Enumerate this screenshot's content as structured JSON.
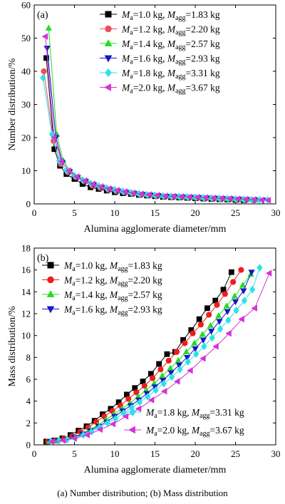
{
  "caption": "(a)  Number  distribution;  (b)  Mass  distribution",
  "chart_data": [
    {
      "type": "line",
      "panel": "(a)",
      "xlabel": "Alumina agglomerate diameter/mm",
      "ylabel": "Number distribution/%",
      "xlim": [
        0,
        30
      ],
      "ylim": [
        0,
        60
      ],
      "xticks": [
        "0",
        "5",
        "10",
        "15",
        "20",
        "25",
        "30"
      ],
      "yticks": [
        "0",
        "10",
        "20",
        "30",
        "40",
        "50",
        "60"
      ],
      "legend_position": "top-right",
      "series": [
        {
          "legend": [
            "M",
            "a",
            "=1.0 kg,  ",
            "M",
            "agg",
            "=1.83 kg"
          ],
          "color": "#000000",
          "marker": "square",
          "x": [
            1.5,
            2.5,
            3.2,
            4,
            5,
            6,
            7,
            8,
            9,
            10,
            11,
            12,
            13,
            14,
            15,
            16,
            17,
            18,
            19,
            20,
            21,
            22,
            23,
            24,
            25,
            26
          ],
          "y": [
            44,
            16.5,
            11.5,
            9,
            7.5,
            6,
            5,
            4.5,
            4,
            3.5,
            3.2,
            3,
            2.7,
            2.5,
            2.3,
            2.1,
            2,
            1.9,
            1.8,
            1.7,
            1.6,
            1.5,
            1.4,
            1.3,
            1.2,
            1.1
          ]
        },
        {
          "legend": [
            "M",
            "a",
            "=1.2 kg,  ",
            "M",
            "agg",
            "=2.20 kg"
          ],
          "color": "#e8505b",
          "marker": "circle",
          "x": [
            1.2,
            2.4,
            3.3,
            4.2,
            5.2,
            6.2,
            7.2,
            8.2,
            9.2,
            10.2,
            11.2,
            12.2,
            13.2,
            14.2,
            15.2,
            16.2,
            17.2,
            18.2,
            19.2,
            20.2,
            21.2,
            22.2,
            23.2,
            24.2,
            25.2,
            26.2,
            27.2
          ],
          "y": [
            40,
            19,
            12,
            9.5,
            8,
            6.8,
            5.5,
            4.8,
            4.2,
            3.8,
            3.4,
            3.1,
            2.8,
            2.6,
            2.4,
            2.2,
            2.1,
            2,
            1.9,
            1.8,
            1.7,
            1.6,
            1.5,
            1.4,
            1.3,
            1.2,
            1.1
          ]
        },
        {
          "legend": [
            "M",
            "a",
            "=1.4 kg,  ",
            "M",
            "agg",
            "=2.57 kg"
          ],
          "color": "#22dd22",
          "marker": "triangle-up",
          "x": [
            1.8,
            2.8,
            3.6,
            4.5,
            5.5,
            6.5,
            7.5,
            8.5,
            9.5,
            10.5,
            11.5,
            12.5,
            13.5,
            14.5,
            15.5,
            16.5,
            17.5,
            18.5,
            19.5,
            20.5,
            21.5,
            22.5,
            23.5,
            24.5,
            25.5,
            26.5,
            27.5
          ],
          "y": [
            53,
            21,
            13,
            10,
            8.2,
            7,
            6,
            5.2,
            4.5,
            4,
            3.6,
            3.2,
            2.9,
            2.7,
            2.5,
            2.3,
            2.2,
            2.1,
            2,
            1.9,
            1.8,
            1.7,
            1.6,
            1.5,
            1.4,
            1.3,
            1.2
          ]
        },
        {
          "legend": [
            "M",
            "a",
            "=1.6 kg,  ",
            "M",
            "agg",
            "=2.93 kg"
          ],
          "color": "#1515c8",
          "marker": "triangle-down",
          "x": [
            1.6,
            2.7,
            3.5,
            4.4,
            5.4,
            6.4,
            7.4,
            8.4,
            9.4,
            10.4,
            11.4,
            12.4,
            13.4,
            14.4,
            15.4,
            16.4,
            17.4,
            18.4,
            19.4,
            20.4,
            21.4,
            22.4,
            23.4,
            24.4,
            25.4,
            26.4,
            27.4,
            28.4
          ],
          "y": [
            47,
            20,
            12.5,
            9.8,
            8,
            6.8,
            5.8,
            5,
            4.4,
            3.9,
            3.5,
            3.2,
            2.9,
            2.7,
            2.5,
            2.3,
            2.2,
            2.1,
            2,
            1.9,
            1.8,
            1.7,
            1.6,
            1.5,
            1.4,
            1.3,
            1.2,
            1.1
          ]
        },
        {
          "legend": [
            "M",
            "a",
            "=1.8 kg,  ",
            "M",
            "agg",
            "=3.31 kg"
          ],
          "color": "#2ee0e8",
          "marker": "diamond",
          "x": [
            1.1,
            2.2,
            3.1,
            4,
            5,
            6,
            7,
            8,
            9,
            10,
            11,
            12,
            13,
            14,
            15,
            16,
            17,
            18,
            19,
            20,
            21,
            22,
            23,
            24,
            25,
            26,
            27,
            28,
            29
          ],
          "y": [
            38,
            21,
            13,
            10,
            8.5,
            7.2,
            6.2,
            5.4,
            4.8,
            4.3,
            3.8,
            3.4,
            3.1,
            2.8,
            2.6,
            2.4,
            2.3,
            2.2,
            2.1,
            2,
            1.9,
            1.8,
            1.7,
            1.6,
            1.5,
            1.4,
            1.3,
            1.2,
            1.2
          ]
        },
        {
          "legend": [
            "M",
            "a",
            "=2.0 kg,  ",
            "M",
            "agg",
            "=3.67 kg"
          ],
          "color": "#d632d6",
          "marker": "triangle-left",
          "x": [
            1.4,
            2.5,
            3.4,
            4.3,
            5.3,
            6.3,
            7.3,
            8.3,
            9.3,
            10.3,
            11.3,
            12.3,
            13.3,
            14.3,
            15.3,
            16.3,
            17.3,
            18.3,
            19.3,
            20.3,
            21.3,
            22.3,
            23.3,
            24.3,
            25.3,
            26.3,
            27.3,
            28.3,
            29.1
          ],
          "y": [
            50.5,
            20,
            12.8,
            10,
            8.2,
            7,
            6,
            5.2,
            4.6,
            4.1,
            3.7,
            3.3,
            3,
            2.8,
            2.6,
            2.4,
            2.3,
            2.2,
            2.1,
            2,
            1.9,
            1.8,
            1.7,
            1.6,
            1.5,
            1.4,
            1.3,
            1.2,
            1.1
          ]
        }
      ]
    },
    {
      "type": "line",
      "panel": "(b)",
      "xlabel": "Alumina agglomerate diameter/mm",
      "ylabel": "Mass distribution/%",
      "xlim": [
        0,
        30
      ],
      "ylim": [
        0,
        18
      ],
      "xticks": [
        "0",
        "5",
        "10",
        "15",
        "20",
        "25",
        "30"
      ],
      "yticks": [
        "0",
        "2",
        "4",
        "6",
        "8",
        "10",
        "12",
        "14",
        "16",
        "18"
      ],
      "legend_position": "top-left and bottom-right",
      "series": [
        {
          "legend": [
            "M",
            "a",
            "=1.0 kg,  ",
            "M",
            "agg",
            "=1.83 kg"
          ],
          "color": "#000000",
          "marker": "square",
          "x": [
            1.5,
            2.5,
            3.5,
            4.5,
            5.5,
            6.5,
            7.5,
            8.5,
            9.5,
            10.5,
            11.5,
            12.5,
            13.5,
            14.5,
            15.5,
            16.5,
            17.5,
            18.5,
            19.5,
            20.5,
            21.5,
            22.5,
            23.5,
            24.5
          ],
          "y": [
            0.3,
            0.4,
            0.6,
            0.9,
            1.3,
            1.7,
            2.2,
            2.8,
            3.3,
            3.9,
            4.6,
            5.2,
            5.8,
            6.5,
            7.4,
            8.3,
            8.5,
            9.6,
            10.5,
            11.5,
            12.5,
            13.2,
            14.2,
            15.8
          ]
        },
        {
          "legend": [
            "M",
            "a",
            "=1.2 kg,  ",
            "M",
            "agg",
            "=2.20 kg"
          ],
          "color": "#ee1c1c",
          "marker": "circle",
          "x": [
            1.7,
            2.7,
            3.7,
            4.7,
            5.7,
            6.7,
            7.7,
            8.7,
            9.7,
            10.7,
            11.7,
            12.7,
            13.7,
            14.7,
            15.7,
            16.7,
            17.7,
            18.7,
            19.7,
            20.7,
            21.7,
            22.7,
            23.7,
            24.7,
            25.7
          ],
          "y": [
            0.3,
            0.4,
            0.6,
            0.8,
            1.2,
            1.6,
            2.1,
            2.6,
            3.1,
            3.6,
            4.2,
            4.8,
            5.4,
            6.1,
            6.9,
            7.7,
            8.5,
            9.3,
            10.2,
            11,
            11.9,
            12.8,
            13.8,
            14.9,
            16
          ]
        },
        {
          "legend": [
            "M",
            "a",
            "=1.4 kg,  ",
            "M",
            "agg",
            "=2.57 kg"
          ],
          "color": "#22dd22",
          "marker": "triangle-up",
          "x": [
            1.9,
            2.9,
            3.9,
            4.9,
            5.9,
            6.9,
            7.9,
            8.9,
            9.9,
            10.9,
            11.9,
            12.9,
            13.9,
            14.9,
            15.9,
            16.9,
            17.9,
            18.9,
            19.9,
            20.9,
            21.9,
            22.9,
            23.9,
            24.9,
            25.9,
            26.9
          ],
          "y": [
            0.3,
            0.4,
            0.5,
            0.7,
            1,
            1.4,
            1.8,
            2.3,
            2.8,
            3.3,
            3.8,
            4.4,
            5,
            5.6,
            6.3,
            7,
            7.7,
            8.5,
            9.3,
            10.1,
            10.9,
            11.8,
            12.7,
            13.6,
            14.6,
            15.6
          ]
        },
        {
          "legend": [
            "M",
            "a",
            "=1.6 kg,  ",
            "M",
            "agg",
            "=2.93 kg"
          ],
          "color": "#1515c8",
          "marker": "triangle-down",
          "x": [
            2,
            3,
            4,
            5,
            6,
            7,
            8,
            9,
            10,
            11,
            12,
            13,
            14,
            15,
            16,
            17,
            18,
            19,
            20,
            21,
            22,
            23,
            24,
            25,
            26,
            27
          ],
          "y": [
            0.3,
            0.4,
            0.5,
            0.7,
            1,
            1.3,
            1.7,
            2.1,
            2.6,
            3.1,
            3.6,
            4.1,
            4.7,
            5.3,
            5.9,
            6.6,
            7.3,
            8,
            8.8,
            9.6,
            10.4,
            11.3,
            12.2,
            13.1,
            14.1,
            15.8
          ]
        },
        {
          "legend": [
            "M",
            "a",
            "=1.8 kg,  ",
            "M",
            "agg",
            "=3.31 kg"
          ],
          "color": "#2ee0e8",
          "marker": "diamond",
          "x": [
            2.1,
            3.1,
            4.1,
            5.1,
            6.1,
            7.1,
            8.1,
            9.1,
            10.1,
            11.1,
            12.1,
            13.1,
            14.1,
            15.1,
            16.1,
            17.1,
            18.1,
            19.1,
            20.1,
            21.1,
            22.1,
            23.1,
            24.1,
            25.1,
            26.1,
            27.1,
            28
          ],
          "y": [
            0.3,
            0.4,
            0.5,
            0.6,
            0.9,
            1.2,
            1.6,
            2,
            2.4,
            2.9,
            3.4,
            3.9,
            4.4,
            5,
            5.6,
            6.2,
            6.9,
            7.6,
            8.3,
            9,
            9.8,
            10.6,
            11.4,
            12.3,
            13.2,
            14.2,
            16.2
          ]
        },
        {
          "legend": [
            "M",
            "a",
            "=2.0 kg,  ",
            "M",
            "agg",
            "=3.67 kg"
          ],
          "color": "#d632d6",
          "marker": "triangle-left",
          "x": [
            2.2,
            3.6,
            5,
            6.6,
            8.2,
            9.8,
            11.4,
            13,
            14.6,
            16.2,
            17.8,
            19.4,
            21,
            22.6,
            24.2,
            25.8,
            27.4,
            29.2
          ],
          "y": [
            0.3,
            0.4,
            0.6,
            0.9,
            1.4,
            1.9,
            2.6,
            3.3,
            4.1,
            4.9,
            5.8,
            6.8,
            7.9,
            9,
            10.2,
            11.5,
            12.5,
            15.7
          ]
        }
      ]
    }
  ]
}
